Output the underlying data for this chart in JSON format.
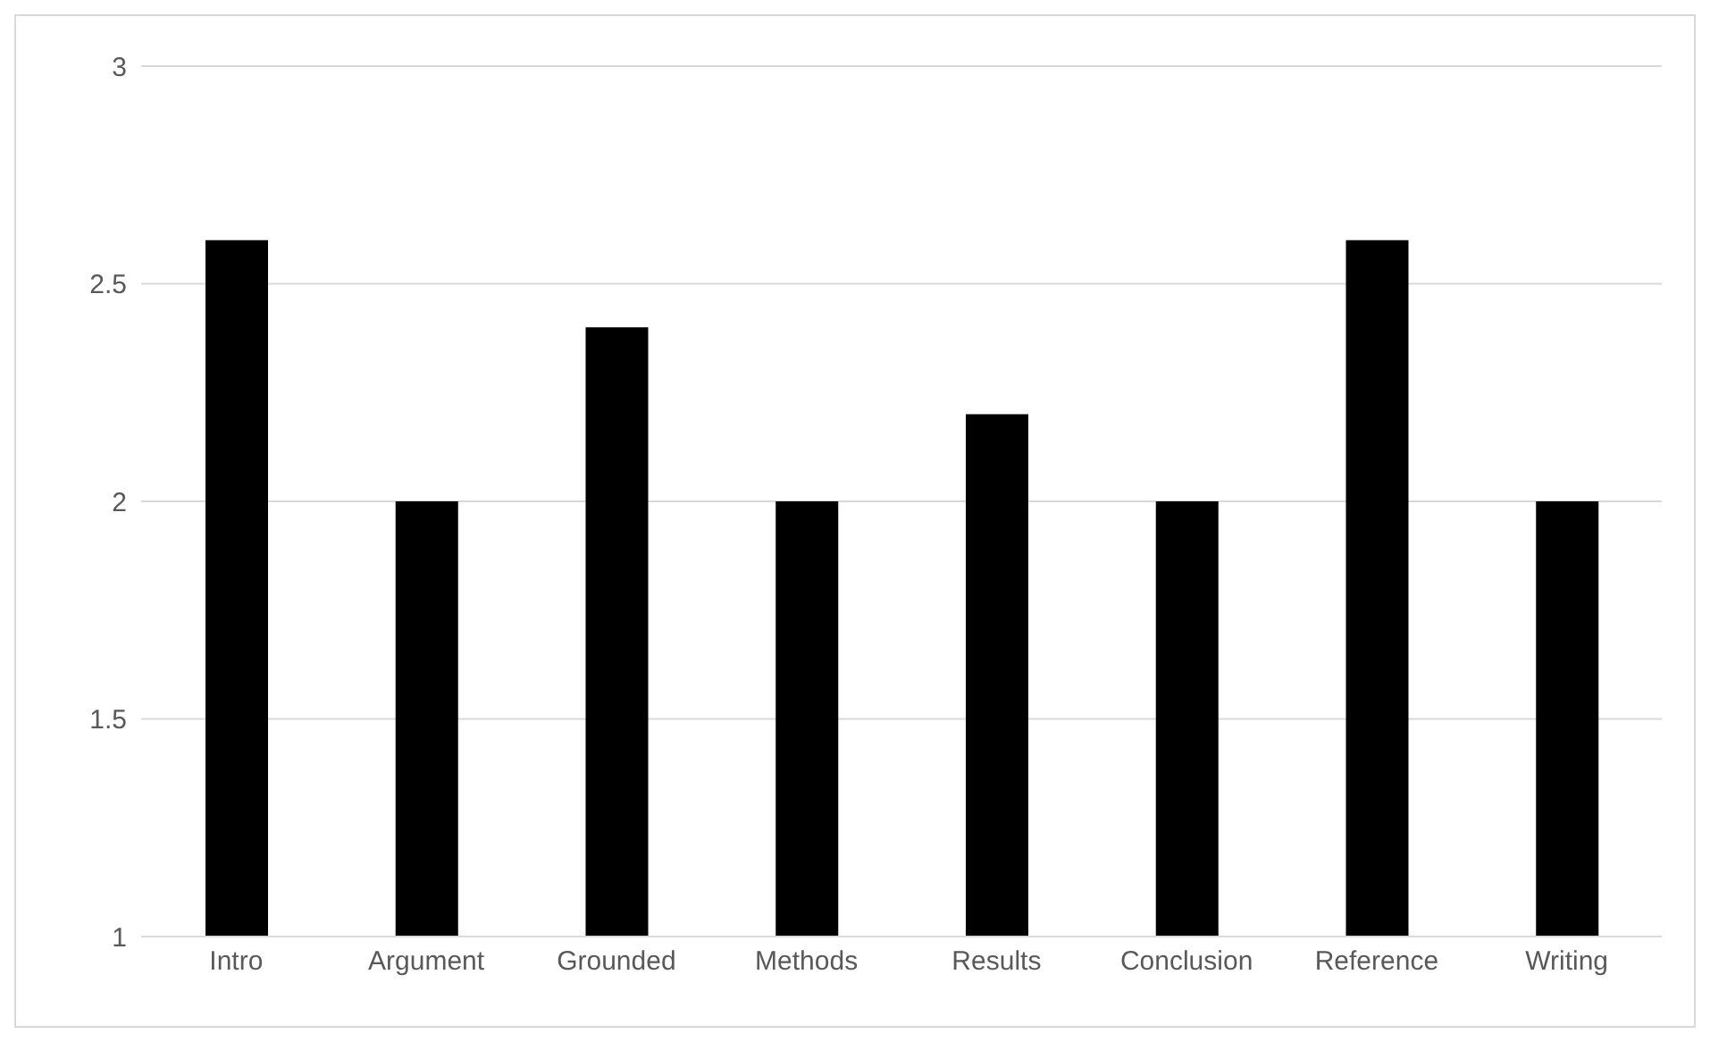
{
  "chart_data": {
    "type": "bar",
    "categories": [
      "Intro",
      "Argument",
      "Grounded",
      "Methods",
      "Results",
      "Conclusion",
      "Reference",
      "Writing"
    ],
    "values": [
      2.6,
      2,
      2.4,
      2,
      2.2,
      2,
      2.6,
      2
    ],
    "color": "#000000",
    "ylim": [
      1,
      3
    ],
    "yticks": [
      1,
      1.5,
      2,
      2.5,
      3
    ],
    "grid": "y"
  }
}
